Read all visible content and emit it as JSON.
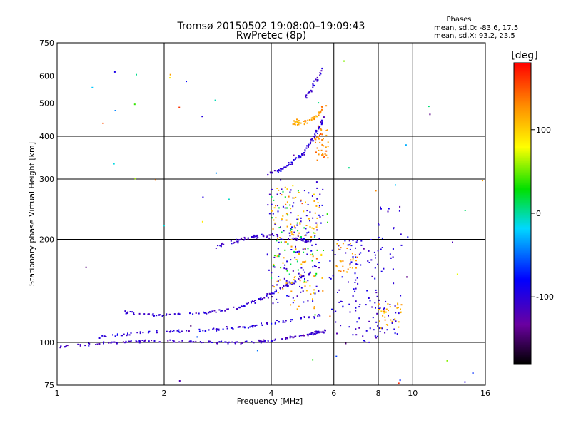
{
  "chart_data": {
    "type": "scatter",
    "title": "Tromsø 20150502 19:08:00–19:09:43",
    "subtitle": "RwPretec (8p)",
    "xlabel": "Frequency [MHz]",
    "ylabel": "Stationary phase Virtual Height [km]",
    "x_scale": "log",
    "y_scale": "log",
    "xlim": [
      1,
      16
    ],
    "ylim": [
      75,
      750
    ],
    "x_ticks": [
      1,
      2,
      4,
      6,
      8,
      10,
      16
    ],
    "x_tick_labels": [
      "1",
      "2",
      "4",
      "6",
      "8",
      "10",
      "16"
    ],
    "x_grid": [
      1,
      2,
      4,
      6,
      8,
      10,
      16
    ],
    "y_ticks": [
      75,
      100,
      200,
      300,
      400,
      500,
      600,
      750
    ],
    "y_tick_labels": [
      "75",
      "100",
      "200",
      "300",
      "400",
      "500",
      "600",
      "750"
    ],
    "y_grid": [
      100,
      200,
      300,
      400,
      500,
      600
    ],
    "grid": true,
    "stats": {
      "label": "Phases",
      "O_line": "mean, sd,O: -83.6, 17.5",
      "X_line": "mean, sd,X:  93.2, 23.5"
    },
    "colorbar": {
      "title": "[deg]",
      "range": [
        -180,
        180
      ],
      "ticks": [
        100,
        0,
        -100
      ],
      "tick_labels": [
        "100",
        "0",
        "-100"
      ],
      "colormap": "rainbow"
    },
    "traces": [
      {
        "path": [
          [
            1.0,
            97
          ],
          [
            1.3,
            99
          ],
          [
            1.7,
            101
          ],
          [
            2.2,
            101
          ],
          [
            2.8,
            100
          ],
          [
            3.5,
            100
          ],
          [
            4.0,
            101
          ],
          [
            4.6,
            104
          ],
          [
            5.2,
            106
          ],
          [
            5.7,
            108
          ]
        ],
        "phase": -110,
        "count": 170,
        "jitter": 0.012
      },
      {
        "path": [
          [
            1.3,
            103
          ],
          [
            1.7,
            107
          ],
          [
            2.2,
            108
          ],
          [
            2.8,
            109
          ],
          [
            3.4,
            111
          ],
          [
            4.0,
            114
          ],
          [
            4.8,
            117
          ],
          [
            5.5,
            120
          ]
        ],
        "phase": -100,
        "count": 110,
        "jitter": 0.012
      },
      {
        "path": [
          [
            1.55,
            122
          ],
          [
            2.0,
            120
          ],
          [
            2.6,
            122
          ],
          [
            3.2,
            126
          ],
          [
            3.7,
            133
          ],
          [
            4.1,
            141
          ],
          [
            4.6,
            150
          ],
          [
            5.2,
            160
          ]
        ],
        "phase": -105,
        "count": 120,
        "jitter": 0.012
      },
      {
        "path": [
          [
            2.8,
            190
          ],
          [
            3.3,
            200
          ],
          [
            3.7,
            205
          ],
          [
            4.0,
            205
          ],
          [
            4.6,
            200
          ],
          [
            5.3,
            198
          ]
        ],
        "phase": -110,
        "count": 70,
        "jitter": 0.02
      },
      {
        "path": [
          [
            3.9,
            310
          ],
          [
            4.4,
            325
          ],
          [
            4.9,
            355
          ],
          [
            5.3,
            400
          ],
          [
            5.6,
            450
          ]
        ],
        "phase": -100,
        "count": 80,
        "jitter": 0.015
      },
      {
        "path": [
          [
            5.0,
            520
          ],
          [
            5.3,
            570
          ],
          [
            5.6,
            630
          ]
        ],
        "phase": -110,
        "count": 30,
        "jitter": 0.02
      },
      {
        "path": [
          [
            4.6,
            440
          ],
          [
            5.0,
            440
          ],
          [
            5.4,
            460
          ],
          [
            5.7,
            500
          ]
        ],
        "phase": 120,
        "count": 50,
        "jitter": 0.02
      }
    ],
    "clusters": [
      {
        "x": [
          3.9,
          5.6
        ],
        "y": [
          130,
          300
        ],
        "count": 140,
        "phase": -100
      },
      {
        "x": [
          4.0,
          5.6
        ],
        "y": [
          125,
          290
        ],
        "count": 110,
        "phase": 115
      },
      {
        "x": [
          4.0,
          5.8
        ],
        "y": [
          150,
          280
        ],
        "count": 45,
        "phase": 20
      },
      {
        "x": [
          5.3,
          5.8
        ],
        "y": [
          340,
          430
        ],
        "count": 40,
        "phase": 130
      },
      {
        "x": [
          5.8,
          7.2
        ],
        "y": [
          105,
          200
        ],
        "count": 60,
        "phase": -100
      },
      {
        "x": [
          6.1,
          7.0
        ],
        "y": [
          160,
          200
        ],
        "count": 30,
        "phase": 115
      },
      {
        "x": [
          6.9,
          8.0
        ],
        "y": [
          100,
          200
        ],
        "count": 45,
        "phase": -100
      },
      {
        "x": [
          7.9,
          9.3
        ],
        "y": [
          105,
          250
        ],
        "count": 50,
        "phase": -100
      },
      {
        "x": [
          8.0,
          9.3
        ],
        "y": [
          110,
          130
        ],
        "count": 30,
        "phase": 115
      },
      {
        "x": [
          1.2,
          16
        ],
        "y": [
          75,
          700
        ],
        "count": 55,
        "phase": 0
      }
    ]
  }
}
